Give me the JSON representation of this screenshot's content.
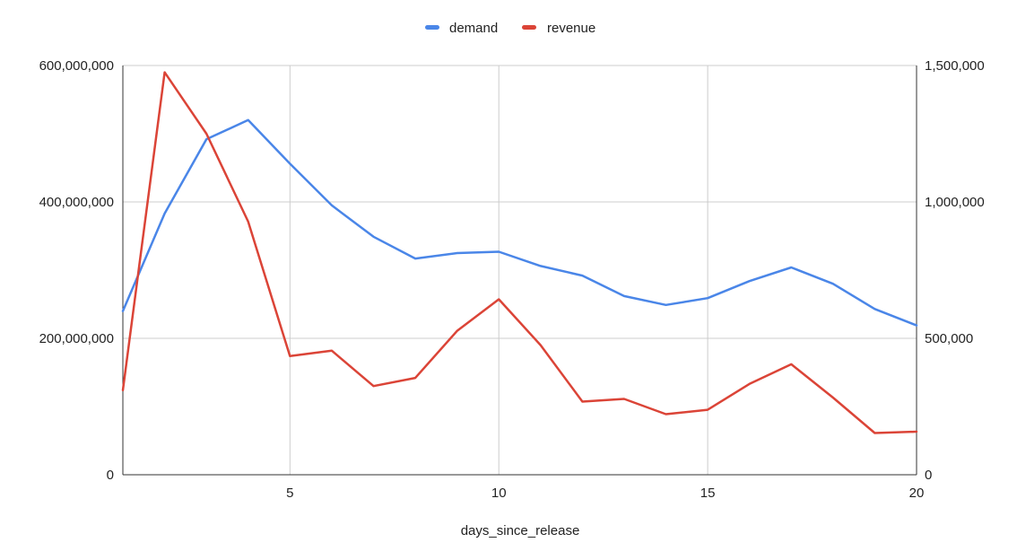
{
  "chart_data": {
    "type": "line",
    "title": "",
    "xlabel": "days_since_release",
    "ylabel_left": "",
    "ylabel_right": "",
    "x": [
      1,
      2,
      3,
      4,
      5,
      6,
      7,
      8,
      9,
      10,
      11,
      12,
      13,
      14,
      15,
      16,
      17,
      18,
      19,
      20
    ],
    "xlim": [
      1,
      20
    ],
    "x_ticks": [
      5,
      10,
      15,
      20
    ],
    "x_tick_labels": [
      "5",
      "10",
      "15",
      "20"
    ],
    "ylim_left": [
      0,
      600000000
    ],
    "y_ticks_left": [
      0,
      200000000,
      400000000,
      600000000
    ],
    "y_tick_labels_left": [
      "0",
      "200,000,000",
      "400,000,000",
      "600,000,000"
    ],
    "ylim_right": [
      0,
      1500000
    ],
    "y_ticks_right": [
      0,
      500000,
      1000000,
      1500000
    ],
    "y_tick_labels_right": [
      "0",
      "500,000",
      "1,000,000",
      "1,500,000"
    ],
    "grid": true,
    "legend_position": "top-center",
    "series": [
      {
        "name": "demand",
        "axis": "left",
        "color": "#4a86e8",
        "values": [
          240000000,
          383000000,
          492000000,
          520000000,
          456000000,
          395000000,
          349000000,
          317000000,
          325000000,
          327000000,
          306000000,
          292000000,
          262000000,
          249000000,
          259000000,
          284000000,
          304000000,
          280000000,
          243000000,
          219000000
        ]
      },
      {
        "name": "revenue",
        "axis": "right",
        "color": "#db4437",
        "values": [
          310000,
          1475000,
          1250000,
          928000,
          435000,
          455000,
          325000,
          355000,
          527000,
          643000,
          475000,
          268000,
          278000,
          222000,
          238000,
          333000,
          405000,
          283000,
          153000,
          158000
        ]
      }
    ]
  }
}
